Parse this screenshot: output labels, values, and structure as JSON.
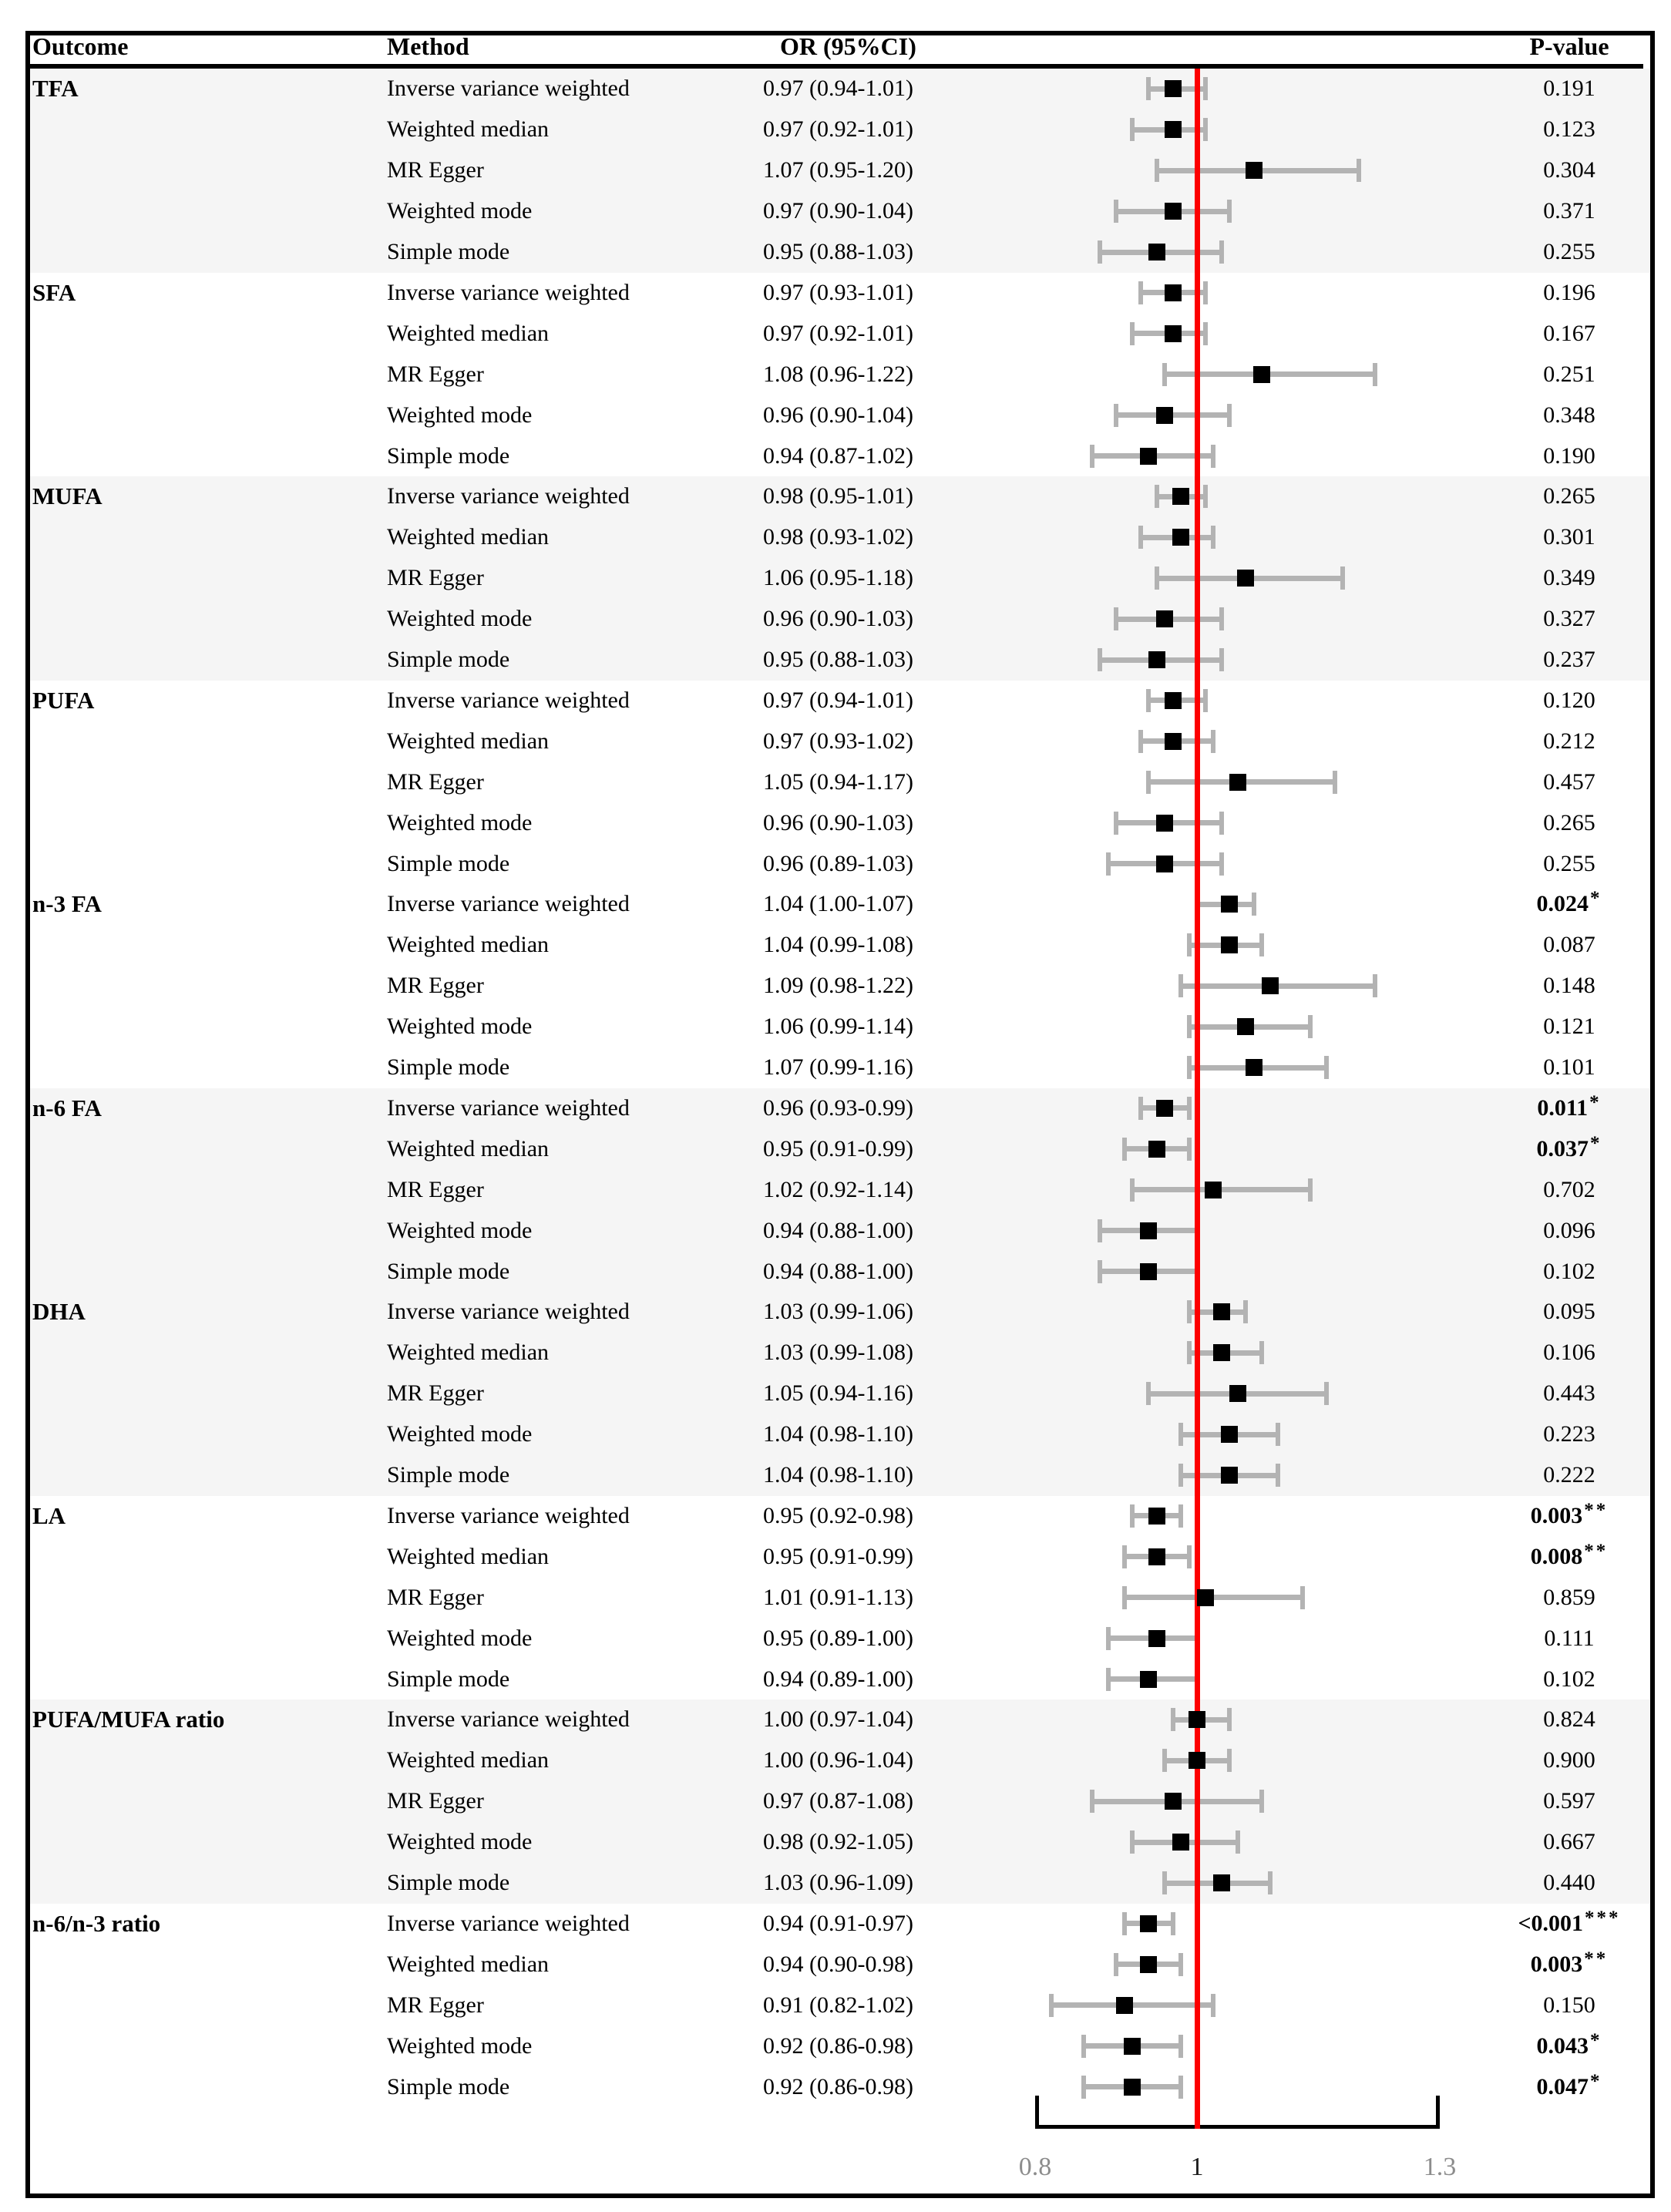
{
  "header": {
    "outcome": "Outcome",
    "method": "Method",
    "or_ci": "OR (95%CI)",
    "p_value": "P-value"
  },
  "style": {
    "ref_line_color": "#fd0000",
    "whisker_color": "#b3b3b3",
    "marker_color": "#000000",
    "band_color": "#f5f5f5",
    "border_color": "#000000",
    "tick_gray": "#8c8c8c",
    "tick_dark": "#1a1a1a"
  },
  "chart_data": {
    "type": "scatter",
    "subtype": "forest-plot",
    "title": "",
    "xlabel": "",
    "ylabel": "",
    "x_range": [
      0.8,
      1.3
    ],
    "ref_line": 1,
    "grid": false,
    "legend": "none",
    "axis_ticks": [
      {
        "label": "0.8",
        "value": 0.8,
        "shade": "gray"
      },
      {
        "label": "1",
        "value": 1.0,
        "shade": "dark"
      },
      {
        "label": "1.3",
        "value": 1.3,
        "shade": "gray"
      }
    ],
    "groups": [
      {
        "outcome": "TFA",
        "shaded": true,
        "rows": [
          {
            "method": "Inverse variance weighted",
            "or_text": "0.97 (0.94-1.01)",
            "or": 0.97,
            "lo": 0.94,
            "hi": 1.01,
            "p": "0.191",
            "stars": "",
            "bold": false
          },
          {
            "method": "Weighted median",
            "or_text": "0.97 (0.92-1.01)",
            "or": 0.97,
            "lo": 0.92,
            "hi": 1.01,
            "p": "0.123",
            "stars": "",
            "bold": false
          },
          {
            "method": "MR Egger",
            "or_text": "1.07 (0.95-1.20)",
            "or": 1.07,
            "lo": 0.95,
            "hi": 1.2,
            "p": "0.304",
            "stars": "",
            "bold": false
          },
          {
            "method": "Weighted mode",
            "or_text": "0.97 (0.90-1.04)",
            "or": 0.97,
            "lo": 0.9,
            "hi": 1.04,
            "p": "0.371",
            "stars": "",
            "bold": false
          },
          {
            "method": "Simple mode",
            "or_text": "0.95 (0.88-1.03)",
            "or": 0.95,
            "lo": 0.88,
            "hi": 1.03,
            "p": "0.255",
            "stars": "",
            "bold": false
          }
        ]
      },
      {
        "outcome": "SFA",
        "shaded": false,
        "rows": [
          {
            "method": "Inverse variance weighted",
            "or_text": "0.97 (0.93-1.01)",
            "or": 0.97,
            "lo": 0.93,
            "hi": 1.01,
            "p": "0.196",
            "stars": "",
            "bold": false
          },
          {
            "method": "Weighted median",
            "or_text": "0.97 (0.92-1.01)",
            "or": 0.97,
            "lo": 0.92,
            "hi": 1.01,
            "p": "0.167",
            "stars": "",
            "bold": false
          },
          {
            "method": "MR Egger",
            "or_text": "1.08 (0.96-1.22)",
            "or": 1.08,
            "lo": 0.96,
            "hi": 1.22,
            "p": "0.251",
            "stars": "",
            "bold": false
          },
          {
            "method": "Weighted mode",
            "or_text": "0.96 (0.90-1.04)",
            "or": 0.96,
            "lo": 0.9,
            "hi": 1.04,
            "p": "0.348",
            "stars": "",
            "bold": false
          },
          {
            "method": "Simple mode",
            "or_text": "0.94 (0.87-1.02)",
            "or": 0.94,
            "lo": 0.87,
            "hi": 1.02,
            "p": "0.190",
            "stars": "",
            "bold": false
          }
        ]
      },
      {
        "outcome": "MUFA",
        "shaded": true,
        "rows": [
          {
            "method": "Inverse variance weighted",
            "or_text": "0.98 (0.95-1.01)",
            "or": 0.98,
            "lo": 0.95,
            "hi": 1.01,
            "p": "0.265",
            "stars": "",
            "bold": false
          },
          {
            "method": "Weighted median",
            "or_text": "0.98 (0.93-1.02)",
            "or": 0.98,
            "lo": 0.93,
            "hi": 1.02,
            "p": "0.301",
            "stars": "",
            "bold": false
          },
          {
            "method": "MR Egger",
            "or_text": "1.06 (0.95-1.18)",
            "or": 1.06,
            "lo": 0.95,
            "hi": 1.18,
            "p": "0.349",
            "stars": "",
            "bold": false
          },
          {
            "method": "Weighted mode",
            "or_text": "0.96 (0.90-1.03)",
            "or": 0.96,
            "lo": 0.9,
            "hi": 1.03,
            "p": "0.327",
            "stars": "",
            "bold": false
          },
          {
            "method": "Simple mode",
            "or_text": "0.95 (0.88-1.03)",
            "or": 0.95,
            "lo": 0.88,
            "hi": 1.03,
            "p": "0.237",
            "stars": "",
            "bold": false
          }
        ]
      },
      {
        "outcome": "PUFA",
        "shaded": false,
        "rows": [
          {
            "method": "Inverse variance weighted",
            "or_text": "0.97 (0.94-1.01)",
            "or": 0.97,
            "lo": 0.94,
            "hi": 1.01,
            "p": "0.120",
            "stars": "",
            "bold": false
          },
          {
            "method": "Weighted median",
            "or_text": "0.97 (0.93-1.02)",
            "or": 0.97,
            "lo": 0.93,
            "hi": 1.02,
            "p": "0.212",
            "stars": "",
            "bold": false
          },
          {
            "method": "MR Egger",
            "or_text": "1.05 (0.94-1.17)",
            "or": 1.05,
            "lo": 0.94,
            "hi": 1.17,
            "p": "0.457",
            "stars": "",
            "bold": false
          },
          {
            "method": "Weighted mode",
            "or_text": "0.96 (0.90-1.03)",
            "or": 0.96,
            "lo": 0.9,
            "hi": 1.03,
            "p": "0.265",
            "stars": "",
            "bold": false
          },
          {
            "method": "Simple mode",
            "or_text": "0.96 (0.89-1.03)",
            "or": 0.96,
            "lo": 0.89,
            "hi": 1.03,
            "p": "0.255",
            "stars": "",
            "bold": false
          }
        ]
      },
      {
        "outcome": "n-3 FA",
        "shaded": false,
        "rows": [
          {
            "method": "Inverse variance weighted",
            "or_text": "1.04 (1.00-1.07)",
            "or": 1.04,
            "lo": 1.0,
            "hi": 1.07,
            "p": "0.024",
            "stars": "*",
            "bold": true
          },
          {
            "method": "Weighted median",
            "or_text": "1.04 (0.99-1.08)",
            "or": 1.04,
            "lo": 0.99,
            "hi": 1.08,
            "p": "0.087",
            "stars": "",
            "bold": false
          },
          {
            "method": "MR Egger",
            "or_text": "1.09 (0.98-1.22)",
            "or": 1.09,
            "lo": 0.98,
            "hi": 1.22,
            "p": "0.148",
            "stars": "",
            "bold": false
          },
          {
            "method": "Weighted mode",
            "or_text": "1.06 (0.99-1.14)",
            "or": 1.06,
            "lo": 0.99,
            "hi": 1.14,
            "p": "0.121",
            "stars": "",
            "bold": false
          },
          {
            "method": "Simple mode",
            "or_text": "1.07 (0.99-1.16)",
            "or": 1.07,
            "lo": 0.99,
            "hi": 1.16,
            "p": "0.101",
            "stars": "",
            "bold": false
          }
        ]
      },
      {
        "outcome": "n-6 FA",
        "shaded": true,
        "rows": [
          {
            "method": "Inverse variance weighted",
            "or_text": "0.96 (0.93-0.99)",
            "or": 0.96,
            "lo": 0.93,
            "hi": 0.99,
            "p": "0.011",
            "stars": "*",
            "bold": true
          },
          {
            "method": "Weighted median",
            "or_text": "0.95 (0.91-0.99)",
            "or": 0.95,
            "lo": 0.91,
            "hi": 0.99,
            "p": "0.037",
            "stars": "*",
            "bold": true
          },
          {
            "method": "MR Egger",
            "or_text": "1.02 (0.92-1.14)",
            "or": 1.02,
            "lo": 0.92,
            "hi": 1.14,
            "p": "0.702",
            "stars": "",
            "bold": false
          },
          {
            "method": "Weighted mode",
            "or_text": "0.94 (0.88-1.00)",
            "or": 0.94,
            "lo": 0.88,
            "hi": 1.0,
            "p": "0.096",
            "stars": "",
            "bold": false
          },
          {
            "method": "Simple mode",
            "or_text": "0.94 (0.88-1.00)",
            "or": 0.94,
            "lo": 0.88,
            "hi": 1.0,
            "p": "0.102",
            "stars": "",
            "bold": false
          }
        ]
      },
      {
        "outcome": "DHA",
        "shaded": true,
        "rows": [
          {
            "method": "Inverse variance weighted",
            "or_text": "1.03 (0.99-1.06)",
            "or": 1.03,
            "lo": 0.99,
            "hi": 1.06,
            "p": "0.095",
            "stars": "",
            "bold": false
          },
          {
            "method": "Weighted median",
            "or_text": "1.03 (0.99-1.08)",
            "or": 1.03,
            "lo": 0.99,
            "hi": 1.08,
            "p": "0.106",
            "stars": "",
            "bold": false
          },
          {
            "method": "MR Egger",
            "or_text": "1.05 (0.94-1.16)",
            "or": 1.05,
            "lo": 0.94,
            "hi": 1.16,
            "p": "0.443",
            "stars": "",
            "bold": false
          },
          {
            "method": "Weighted mode",
            "or_text": "1.04 (0.98-1.10)",
            "or": 1.04,
            "lo": 0.98,
            "hi": 1.1,
            "p": "0.223",
            "stars": "",
            "bold": false
          },
          {
            "method": "Simple mode",
            "or_text": "1.04 (0.98-1.10)",
            "or": 1.04,
            "lo": 0.98,
            "hi": 1.1,
            "p": "0.222",
            "stars": "",
            "bold": false
          }
        ]
      },
      {
        "outcome": "LA",
        "shaded": false,
        "rows": [
          {
            "method": "Inverse variance weighted",
            "or_text": "0.95 (0.92-0.98)",
            "or": 0.95,
            "lo": 0.92,
            "hi": 0.98,
            "p": "0.003",
            "stars": "**",
            "bold": true
          },
          {
            "method": "Weighted median",
            "or_text": "0.95 (0.91-0.99)",
            "or": 0.95,
            "lo": 0.91,
            "hi": 0.99,
            "p": "0.008",
            "stars": "**",
            "bold": true
          },
          {
            "method": "MR Egger",
            "or_text": "1.01 (0.91-1.13)",
            "or": 1.01,
            "lo": 0.91,
            "hi": 1.13,
            "p": "0.859",
            "stars": "",
            "bold": false
          },
          {
            "method": "Weighted mode",
            "or_text": "0.95 (0.89-1.00)",
            "or": 0.95,
            "lo": 0.89,
            "hi": 1.0,
            "p": "0.111",
            "stars": "",
            "bold": false
          },
          {
            "method": "Simple mode",
            "or_text": "0.94 (0.89-1.00)",
            "or": 0.94,
            "lo": 0.89,
            "hi": 1.0,
            "p": "0.102",
            "stars": "",
            "bold": false
          }
        ]
      },
      {
        "outcome": "PUFA/MUFA ratio",
        "shaded": true,
        "rows": [
          {
            "method": "Inverse variance weighted",
            "or_text": "1.00 (0.97-1.04)",
            "or": 1.0,
            "lo": 0.97,
            "hi": 1.04,
            "p": "0.824",
            "stars": "",
            "bold": false
          },
          {
            "method": "Weighted median",
            "or_text": "1.00 (0.96-1.04)",
            "or": 1.0,
            "lo": 0.96,
            "hi": 1.04,
            "p": "0.900",
            "stars": "",
            "bold": false
          },
          {
            "method": "MR Egger",
            "or_text": "0.97 (0.87-1.08)",
            "or": 0.97,
            "lo": 0.87,
            "hi": 1.08,
            "p": "0.597",
            "stars": "",
            "bold": false
          },
          {
            "method": "Weighted mode",
            "or_text": "0.98 (0.92-1.05)",
            "or": 0.98,
            "lo": 0.92,
            "hi": 1.05,
            "p": "0.667",
            "stars": "",
            "bold": false
          },
          {
            "method": "Simple mode",
            "or_text": "1.03 (0.96-1.09)",
            "or": 1.03,
            "lo": 0.96,
            "hi": 1.09,
            "p": "0.440",
            "stars": "",
            "bold": false
          }
        ]
      },
      {
        "outcome": "n-6/n-3 ratio",
        "shaded": false,
        "rows": [
          {
            "method": "Inverse variance weighted",
            "or_text": "0.94 (0.91-0.97)",
            "or": 0.94,
            "lo": 0.91,
            "hi": 0.97,
            "p": "<0.001",
            "stars": "***",
            "bold": true
          },
          {
            "method": "Weighted median",
            "or_text": "0.94 (0.90-0.98)",
            "or": 0.94,
            "lo": 0.9,
            "hi": 0.98,
            "p": "0.003",
            "stars": "**",
            "bold": true
          },
          {
            "method": "MR Egger",
            "or_text": "0.91 (0.82-1.02)",
            "or": 0.91,
            "lo": 0.82,
            "hi": 1.02,
            "p": "0.150",
            "stars": "",
            "bold": false
          },
          {
            "method": "Weighted mode",
            "or_text": "0.92 (0.86-0.98)",
            "or": 0.92,
            "lo": 0.86,
            "hi": 0.98,
            "p": "0.043",
            "stars": "*",
            "bold": true
          },
          {
            "method": "Simple mode",
            "or_text": "0.92 (0.86-0.98)",
            "or": 0.92,
            "lo": 0.86,
            "hi": 0.98,
            "p": "0.047",
            "stars": "*",
            "bold": true
          }
        ]
      }
    ]
  }
}
